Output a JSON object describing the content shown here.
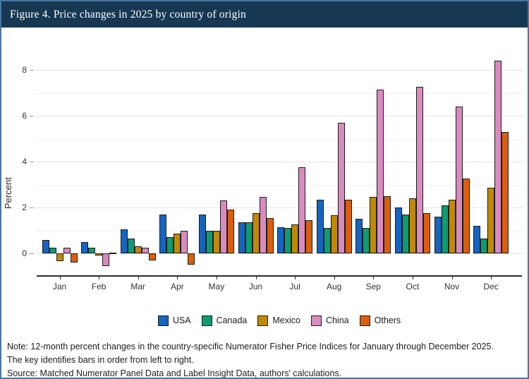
{
  "header": {
    "title": "Figure 4. Price changes in 2025 by country of origin"
  },
  "chart_data": {
    "type": "bar",
    "title": "Figure 4. Price changes in 2025 by country of origin",
    "xlabel": "",
    "ylabel": "Percent",
    "categories": [
      "Jan",
      "Feb",
      "Mar",
      "Apr",
      "May",
      "Jun",
      "Jul",
      "Aug",
      "Sep",
      "Oct",
      "Nov",
      "Dec"
    ],
    "series": [
      {
        "name": "USA",
        "color": "#1565c0",
        "values": [
          0.6,
          0.5,
          1.05,
          1.7,
          1.7,
          1.35,
          1.15,
          2.35,
          1.5,
          2.0,
          1.6,
          1.2
        ]
      },
      {
        "name": "Canada",
        "color": "#0d9b72",
        "values": [
          0.25,
          0.25,
          0.65,
          0.7,
          1.0,
          1.35,
          1.1,
          1.1,
          1.1,
          1.7,
          2.1,
          0.65
        ]
      },
      {
        "name": "Mexico",
        "color": "#bf8a06",
        "values": [
          -0.35,
          -0.1,
          0.3,
          0.85,
          1.0,
          1.75,
          1.25,
          1.65,
          2.45,
          2.4,
          2.35,
          2.85
        ]
      },
      {
        "name": "China",
        "color": "#d98bc0",
        "values": [
          0.25,
          -0.55,
          0.25,
          1.0,
          2.3,
          2.45,
          3.75,
          5.7,
          7.15,
          7.25,
          6.4,
          8.4
        ]
      },
      {
        "name": "Others",
        "color": "#d95f0e",
        "values": [
          -0.4,
          0.02,
          -0.3,
          -0.5,
          1.9,
          1.55,
          1.45,
          2.35,
          2.5,
          1.75,
          3.25,
          5.3
        ]
      }
    ],
    "y_ticks": [
      0,
      2,
      4,
      6,
      8
    ],
    "y_minor_ticks": [
      1,
      3,
      5,
      7
    ],
    "ylim": [
      -1.0,
      8.9
    ],
    "grid": "horizontal-major-and-minor",
    "legend_position": "bottom",
    "bar_outline_color": "#1c1c1c"
  },
  "notes": {
    "note": "Note: 12-month percent changes in the country-specific Numerator Fisher Price Indices for January through December 2025.",
    "note2": "The key identifies bars in order from left to right.",
    "source": "Source: Matched Numerator Panel Data and Label Insight Data, authors' calculations."
  },
  "colors": {
    "header_bg": "#173853",
    "header_text": "#ffffff",
    "frame_border": "#4a76a2",
    "grid_major": "#e3e3e3",
    "grid_minor": "#f1f1f1",
    "axis_line": "#2b2b2b"
  }
}
